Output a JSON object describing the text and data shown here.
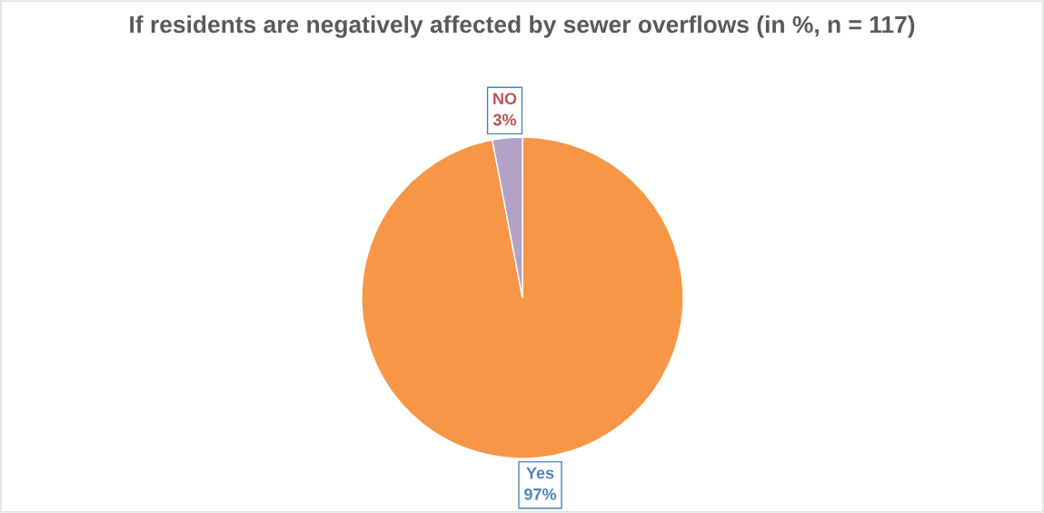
{
  "chart_data": {
    "type": "pie",
    "title": "If residents are negatively affected by sewer overflows (in %, n = 117)",
    "categories": [
      "Yes",
      "NO"
    ],
    "values": [
      97,
      3
    ],
    "colors": [
      "#f79646",
      "#b2a2c7"
    ],
    "value_labels": [
      "97%",
      "3%"
    ],
    "legend": false
  }
}
